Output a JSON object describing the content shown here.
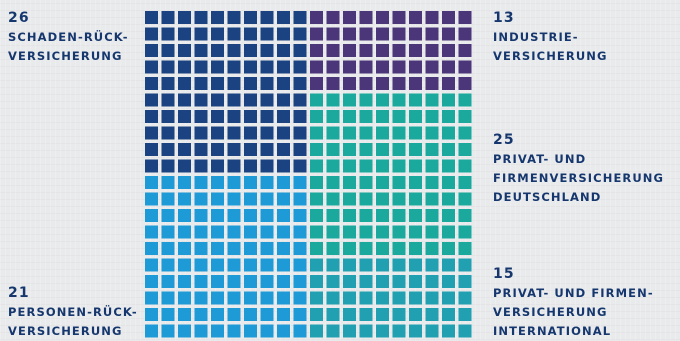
{
  "chart_data": {
    "type": "waffle",
    "grid": {
      "rows": 20,
      "cols": 20
    },
    "total_squares": 400,
    "series": [
      {
        "value": 26,
        "label_lines": [
          "Schaden-Rück-",
          "versicherung"
        ],
        "color": "#1b4381"
      },
      {
        "value": 13,
        "label_lines": [
          "Industrie-",
          "versicherung"
        ],
        "color": "#4a3679"
      },
      {
        "value": 25,
        "label_lines": [
          "Privat- und",
          "Firmenversicherung",
          "Deutschland"
        ],
        "color": "#1aa99c"
      },
      {
        "value": 15,
        "label_lines": [
          "Privat- und Firmen-",
          "versicherung",
          "international"
        ],
        "color": "#20a0b0"
      },
      {
        "value": 21,
        "label_lines": [
          "Personen-Rück-",
          "versicherung"
        ],
        "color": "#1e9ad6"
      }
    ]
  },
  "labels": {
    "schaden": {
      "value": "26",
      "lines": [
        "Schaden-Rück-",
        "versicherung"
      ]
    },
    "personen": {
      "value": "21",
      "lines": [
        "Personen-Rück-",
        "versicherung"
      ]
    },
    "industrie": {
      "value": "13",
      "lines": [
        "Industrie-",
        "versicherung"
      ]
    },
    "privat_de": {
      "value": "25",
      "lines": [
        "Privat- und",
        "Firmenversicherung",
        "Deutschland"
      ]
    },
    "privat_int": {
      "value": "15",
      "lines": [
        "Privat- und Firmen-",
        "versicherung",
        "international"
      ]
    }
  }
}
